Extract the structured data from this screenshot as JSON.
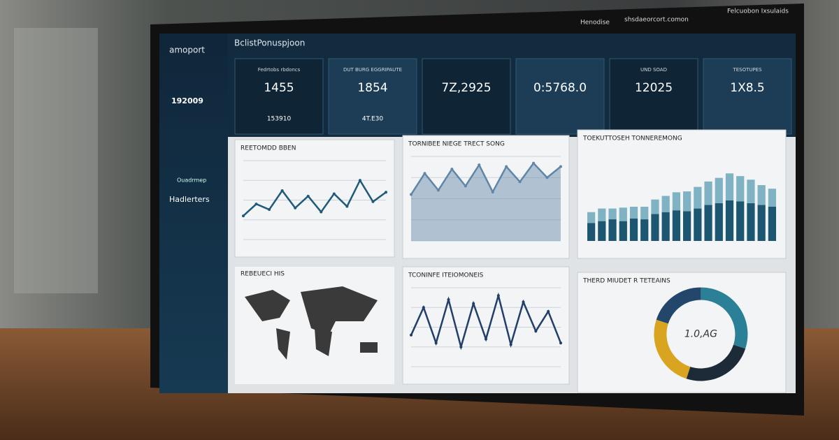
{
  "header": {
    "brand": "amoport",
    "title": "BclistPonuspjoon",
    "links": [
      "Henodise",
      "shsdaeorcort.comon",
      "Felcuobon Ixsulaids"
    ]
  },
  "sidebar": {
    "stat": "192009",
    "section": "Hadlerters",
    "item": "Ouadrmep"
  },
  "kpis": [
    {
      "label": "Fedrtobs rbdoncs",
      "value": "1455",
      "sub": "153910"
    },
    {
      "label": "DUT BURG EGGRIPAUTE",
      "value": "1854",
      "sub": "4T.E30"
    },
    {
      "value": "7Z,2925"
    },
    {
      "value": "0:5768.0"
    },
    {
      "label": "UND SOAD",
      "value": "12025"
    },
    {
      "label": "TESOTUPES",
      "value": "1X8.5"
    }
  ],
  "map": {
    "title": "REBEUECI HIS"
  },
  "chart_data": [
    {
      "type": "line",
      "title": "REETOMDD BBEN",
      "color": "#1f5a7a",
      "ylim": [
        0,
        100
      ],
      "values": [
        30,
        45,
        38,
        62,
        40,
        55,
        35,
        58,
        42,
        75,
        48,
        60
      ]
    },
    {
      "type": "area",
      "title": "TORNIBEE NIEGE TRECT SONG",
      "color": "#5f86a8",
      "ylim": [
        0,
        100
      ],
      "values": [
        55,
        80,
        60,
        85,
        65,
        90,
        58,
        88,
        70,
        92,
        75,
        88
      ]
    },
    {
      "type": "bar",
      "title": "TOEKUTTOSEH TONNEREMONG",
      "ylim": [
        0,
        100
      ],
      "series": [
        {
          "color": "#1d5670",
          "values": [
            20,
            22,
            24,
            22,
            25,
            24,
            30,
            32,
            34,
            33,
            36,
            40,
            42,
            45,
            44,
            42,
            40,
            38
          ]
        },
        {
          "color": "#7fb3c4",
          "values": [
            12,
            14,
            12,
            15,
            13,
            14,
            16,
            18,
            20,
            22,
            24,
            26,
            28,
            30,
            28,
            26,
            22,
            20
          ]
        }
      ]
    },
    {
      "type": "line",
      "title": "TCONINFE ITEIOMONEIS",
      "color": "#223f6a",
      "ylim": [
        0,
        100
      ],
      "values": [
        40,
        75,
        30,
        85,
        25,
        80,
        35,
        90,
        28,
        82,
        45,
        70,
        30
      ]
    },
    {
      "type": "pie",
      "title": "THERD MIUDET R TETEAINS",
      "center_label": "1.0,AG",
      "values": [
        30,
        25,
        25,
        20
      ],
      "colors": [
        "#2b7f96",
        "#1d2a38",
        "#d9a520",
        "#23476b"
      ]
    }
  ]
}
